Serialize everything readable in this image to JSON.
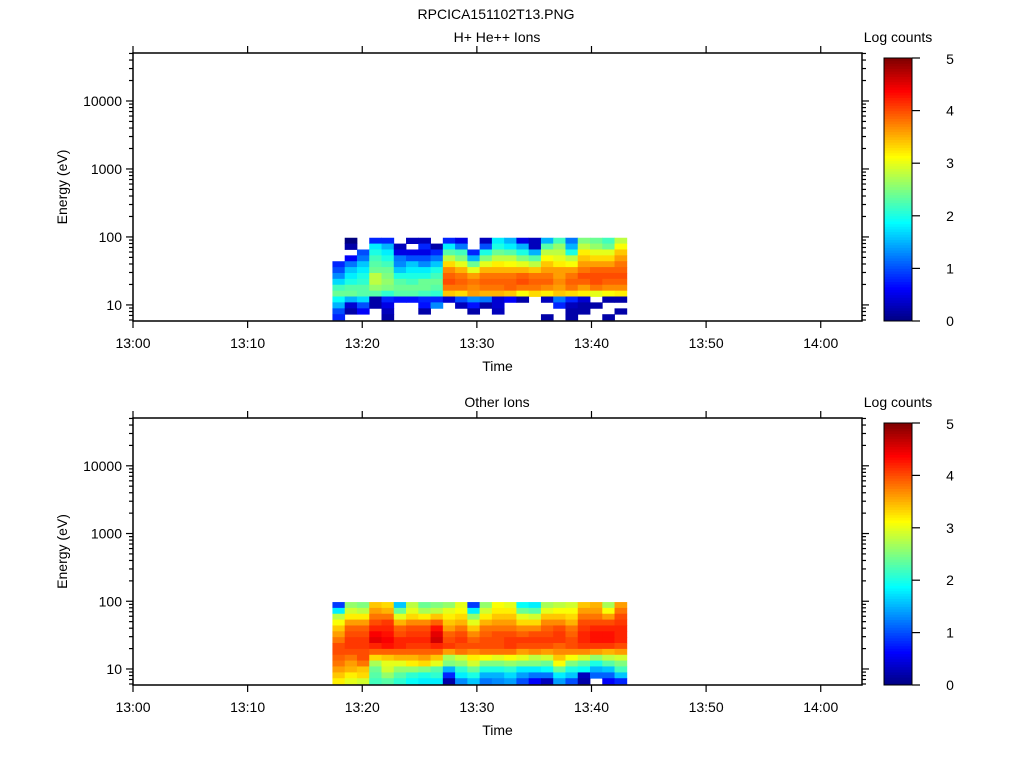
{
  "page_title": "RPCICA151102T13.PNG",
  "colormap": {
    "stops": [
      "#00007f",
      "#0000ff",
      "#00ffff",
      "#ffff00",
      "#ff0000",
      "#7f0000"
    ]
  },
  "chart_data": [
    {
      "type": "heatmap",
      "title": "H+ He++ Ions",
      "xlabel": "Time",
      "ylabel": "Energy (eV)",
      "colorbar_label": "Log counts",
      "colorbar_ticks": [
        "0",
        "1",
        "2",
        "3",
        "4",
        "5"
      ],
      "clim": [
        0,
        5
      ],
      "yscale": "log",
      "ylim": [
        5.8,
        50800
      ],
      "yticks": [
        10,
        100,
        1000,
        10000
      ],
      "ytick_labels": [
        "10",
        "100",
        "1000",
        "10000"
      ],
      "xlim_min_after_1300": [
        0,
        63.6
      ],
      "xticks_min": [
        0,
        10,
        20,
        30,
        40,
        50,
        60
      ],
      "xtick_labels": [
        "13:00",
        "13:10",
        "13:20",
        "13:30",
        "13:40",
        "13:50",
        "14:00"
      ],
      "t_start_min": 17.4,
      "t_step_min": 1.07,
      "energy_edges_eV": [
        6.0,
        7.3,
        8.9,
        10.9,
        13.3,
        16.2,
        19.8,
        24.2,
        29.5,
        36.0,
        43.9,
        53.6,
        65.4,
        79.8,
        97.3
      ],
      "z_high_to_low_energy": [
        [
          null,
          0,
          null,
          0.8,
          0.8,
          null,
          0.3,
          0.3,
          null,
          0.8,
          0.5,
          null,
          0.3,
          1.8,
          1.5,
          0.5,
          0.3,
          1.5,
          2.2,
          1.2,
          2.5,
          2.4,
          2.2,
          2.8
        ],
        [
          null,
          0.2,
          null,
          1.8,
          1.5,
          0.3,
          null,
          0.8,
          0.2,
          1.8,
          1.2,
          null,
          1.0,
          2.0,
          1.8,
          1.5,
          0.3,
          2.3,
          2.6,
          1.5,
          2.8,
          2.6,
          2.4,
          3.1
        ],
        [
          null,
          null,
          1.0,
          2.0,
          1.8,
          0.5,
          0.5,
          0.5,
          0.8,
          2.3,
          2.2,
          0.8,
          2.0,
          2.4,
          2.3,
          2.0,
          1.5,
          2.8,
          2.8,
          2.0,
          3.2,
          3.0,
          3.0,
          3.4
        ],
        [
          null,
          0.6,
          1.2,
          2.2,
          2.0,
          1.2,
          1.0,
          1.0,
          1.2,
          2.8,
          2.5,
          1.5,
          2.5,
          2.8,
          2.8,
          2.5,
          2.3,
          3.1,
          3.0,
          2.8,
          3.4,
          3.3,
          3.3,
          3.6
        ],
        [
          0.8,
          1.2,
          1.6,
          2.3,
          2.2,
          1.3,
          1.6,
          1.3,
          1.6,
          3.3,
          3.0,
          2.4,
          3.0,
          3.2,
          3.1,
          3.0,
          2.8,
          3.4,
          3.2,
          3.1,
          3.6,
          3.6,
          3.6,
          3.8
        ],
        [
          1.0,
          1.6,
          1.8,
          2.4,
          2.4,
          1.6,
          1.8,
          1.8,
          2.0,
          3.7,
          3.5,
          3.0,
          3.5,
          3.5,
          3.5,
          3.5,
          3.4,
          3.6,
          3.6,
          3.6,
          3.8,
          3.9,
          3.9,
          3.9
        ],
        [
          1.3,
          1.8,
          2.0,
          2.8,
          2.5,
          2.0,
          2.0,
          2.0,
          2.2,
          3.9,
          3.8,
          3.6,
          3.8,
          3.8,
          3.8,
          3.9,
          3.8,
          3.8,
          3.6,
          3.8,
          4.0,
          4.0,
          4.0,
          4.0
        ],
        [
          1.7,
          2.0,
          2.1,
          2.8,
          2.6,
          2.3,
          2.2,
          2.4,
          2.4,
          4.0,
          3.9,
          3.8,
          3.9,
          3.9,
          3.9,
          4.0,
          3.9,
          3.9,
          3.7,
          3.9,
          3.9,
          4.0,
          3.9,
          3.9
        ],
        [
          2.2,
          2.3,
          2.3,
          2.6,
          2.5,
          2.4,
          2.4,
          2.4,
          2.3,
          3.8,
          3.8,
          3.7,
          3.8,
          3.8,
          3.9,
          3.8,
          3.8,
          3.7,
          3.6,
          3.8,
          3.6,
          3.8,
          3.7,
          3.7
        ],
        [
          2.4,
          2.4,
          2.3,
          2.3,
          2.1,
          2.3,
          2.3,
          2.2,
          2.1,
          3.4,
          3.3,
          3.6,
          3.5,
          3.5,
          3.4,
          3.1,
          3.3,
          3.2,
          3.4,
          3.3,
          3.2,
          3.0,
          3.1,
          3.2
        ],
        [
          1.9,
          1.5,
          1.7,
          0.2,
          0.8,
          0.7,
          0.7,
          0.8,
          0.8,
          0.4,
          1.0,
          1.3,
          1.2,
          0.4,
          0.6,
          0.2,
          null,
          0.3,
          1.2,
          0.8,
          0.4,
          null,
          0.2,
          0.2
        ],
        [
          1.5,
          0.4,
          1.0,
          0.2,
          0.5,
          null,
          null,
          0.7,
          1.3,
          null,
          0.3,
          0.7,
          0.2,
          0.4,
          null,
          null,
          null,
          null,
          0.8,
          0.3,
          0.2,
          0.2,
          null,
          null
        ],
        [
          1.0,
          0.2,
          0.6,
          null,
          0.3,
          null,
          null,
          0.2,
          null,
          null,
          null,
          0.2,
          null,
          0.3,
          null,
          null,
          null,
          null,
          null,
          0.2,
          0.2,
          null,
          null,
          0.2
        ],
        [
          0.8,
          null,
          null,
          null,
          0.2,
          null,
          null,
          null,
          null,
          null,
          null,
          null,
          null,
          null,
          null,
          null,
          null,
          0.2,
          null,
          0.2,
          null,
          null,
          0.2,
          null
        ]
      ]
    },
    {
      "type": "heatmap",
      "title": "Other Ions",
      "xlabel": "Time",
      "ylabel": "Energy (eV)",
      "colorbar_label": "Log counts",
      "colorbar_ticks": [
        "0",
        "1",
        "2",
        "3",
        "4",
        "5"
      ],
      "clim": [
        0,
        5
      ],
      "yscale": "log",
      "ylim": [
        5.8,
        50800
      ],
      "yticks": [
        10,
        100,
        1000,
        10000
      ],
      "ytick_labels": [
        "10",
        "100",
        "1000",
        "10000"
      ],
      "xlim_min_after_1300": [
        0,
        63.6
      ],
      "xticks_min": [
        0,
        10,
        20,
        30,
        40,
        50,
        60
      ],
      "xtick_labels": [
        "13:00",
        "13:10",
        "13:20",
        "13:30",
        "13:40",
        "13:50",
        "14:00"
      ],
      "t_start_min": 17.4,
      "t_step_min": 1.07,
      "energy_edges_eV": [
        6.0,
        7.3,
        8.9,
        10.9,
        13.3,
        16.2,
        19.8,
        24.2,
        29.5,
        36.0,
        43.9,
        53.6,
        65.4,
        79.8,
        97.3
      ],
      "z_high_to_low_energy": [
        [
          0.9,
          2.6,
          2.5,
          3.4,
          3.3,
          1.6,
          2.8,
          2.4,
          2.5,
          2.6,
          3.0,
          0.9,
          2.6,
          3.1,
          3.0,
          1.9,
          1.8,
          2.7,
          2.8,
          2.9,
          3.4,
          3.5,
          2.7,
          3.6
        ],
        [
          1.8,
          2.9,
          2.8,
          3.6,
          3.5,
          2.4,
          3.0,
          2.7,
          2.8,
          3.0,
          3.1,
          1.8,
          2.9,
          3.2,
          3.2,
          2.4,
          2.3,
          3.0,
          3.1,
          3.1,
          3.6,
          3.6,
          3.1,
          3.8
        ],
        [
          2.8,
          3.2,
          3.2,
          3.8,
          3.8,
          3.0,
          3.3,
          3.2,
          3.4,
          3.2,
          3.3,
          2.6,
          3.2,
          3.4,
          3.4,
          3.0,
          2.9,
          3.4,
          3.4,
          3.3,
          3.8,
          3.8,
          3.6,
          4.0
        ],
        [
          3.1,
          3.6,
          3.6,
          4.0,
          4.1,
          3.5,
          3.7,
          3.7,
          3.9,
          3.4,
          3.5,
          3.0,
          3.5,
          3.6,
          3.6,
          3.3,
          3.3,
          3.7,
          3.7,
          3.5,
          4.0,
          4.0,
          4.0,
          4.1
        ],
        [
          3.4,
          3.9,
          3.9,
          4.2,
          4.2,
          3.9,
          4.0,
          4.0,
          4.3,
          3.6,
          3.8,
          3.4,
          3.8,
          3.8,
          3.8,
          3.7,
          3.7,
          3.9,
          4.0,
          3.8,
          4.1,
          4.2,
          4.2,
          4.2
        ],
        [
          3.6,
          4.0,
          4.0,
          4.4,
          4.3,
          4.0,
          4.1,
          4.1,
          4.5,
          3.9,
          4.0,
          3.7,
          3.9,
          4.0,
          4.0,
          3.9,
          4.0,
          4.0,
          4.1,
          3.9,
          4.2,
          4.3,
          4.3,
          4.2
        ],
        [
          3.8,
          4.1,
          4.1,
          4.5,
          4.4,
          4.2,
          4.2,
          4.2,
          4.6,
          4.0,
          4.1,
          3.9,
          4.0,
          4.0,
          4.1,
          4.1,
          4.1,
          4.1,
          4.1,
          4.0,
          4.2,
          4.3,
          4.3,
          4.2
        ],
        [
          4.0,
          4.1,
          4.1,
          4.2,
          4.3,
          4.2,
          4.1,
          4.1,
          4.2,
          4.1,
          4.0,
          4.0,
          4.0,
          4.0,
          4.1,
          4.0,
          4.0,
          4.0,
          3.9,
          4.0,
          4.1,
          4.1,
          4.1,
          4.0
        ],
        [
          4.0,
          4.0,
          4.0,
          3.9,
          3.9,
          3.9,
          3.9,
          3.9,
          3.9,
          3.6,
          3.8,
          3.7,
          3.8,
          3.8,
          3.8,
          3.6,
          3.7,
          3.6,
          3.7,
          3.7,
          3.7,
          3.6,
          3.5,
          3.6
        ],
        [
          3.9,
          3.8,
          4.0,
          3.3,
          3.4,
          3.5,
          3.5,
          3.6,
          3.4,
          2.7,
          2.9,
          3.2,
          3.1,
          3.0,
          3.1,
          3.0,
          2.8,
          2.9,
          3.4,
          3.1,
          2.9,
          2.6,
          2.8,
          2.9
        ],
        [
          3.8,
          3.6,
          3.8,
          2.7,
          3.0,
          3.0,
          3.2,
          3.3,
          3.0,
          2.5,
          2.6,
          2.9,
          2.5,
          2.5,
          2.6,
          2.5,
          2.5,
          2.4,
          3.1,
          2.5,
          2.3,
          2.0,
          2.3,
          2.5
        ],
        [
          3.6,
          3.5,
          3.4,
          2.4,
          2.9,
          2.6,
          2.6,
          2.5,
          2.3,
          1.5,
          2.1,
          2.4,
          2.0,
          2.0,
          2.1,
          1.8,
          1.8,
          1.9,
          2.4,
          2.0,
          1.9,
          1.5,
          1.6,
          2.2
        ],
        [
          3.4,
          3.2,
          3.3,
          2.3,
          2.6,
          2.3,
          2.1,
          2.0,
          2.1,
          0.8,
          1.8,
          2.0,
          1.5,
          1.5,
          1.7,
          1.4,
          1.2,
          1.2,
          1.8,
          1.6,
          0.3,
          1.1,
          1.1,
          1.6
        ],
        [
          3.2,
          3.0,
          2.9,
          2.2,
          2.3,
          2.1,
          1.9,
          1.8,
          1.8,
          0.2,
          1.3,
          1.6,
          1.2,
          1.3,
          1.4,
          1.0,
          0.6,
          0.3,
          1.4,
          1.0,
          0.2,
          null,
          0.6,
          0.8
        ]
      ]
    }
  ]
}
